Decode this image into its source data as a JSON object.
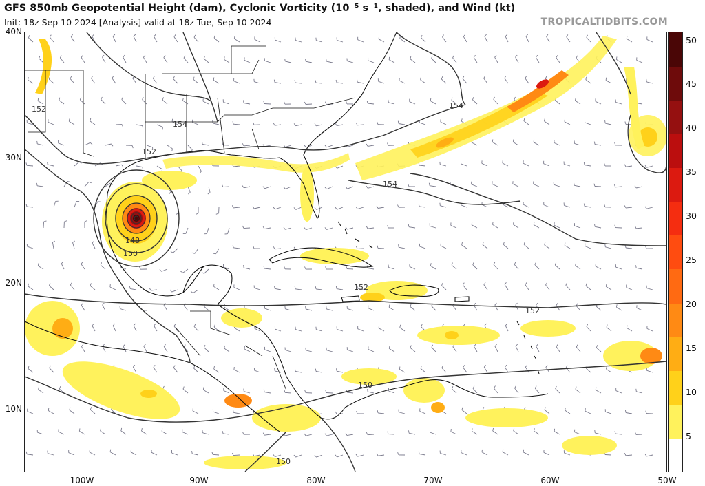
{
  "header": {
    "title": "GFS 850mb Geopotential Height (dam), Cyclonic Vorticity (10⁻⁵ s⁻¹, shaded), and Wind (kt)",
    "subtitle": "Init: 18z Sep 10 2024   [Analysis]   valid at 18z Tue, Sep 10 2024",
    "brand": "TROPICALTIDBITS.COM"
  },
  "map": {
    "region": "Gulf of Mexico, Caribbean and western Atlantic",
    "lon_range": [
      -105,
      -50
    ],
    "lat_range": [
      5,
      40
    ],
    "lat_labels": [
      "40N",
      "30N",
      "20N",
      "10N"
    ],
    "lon_labels": [
      "100W",
      "90W",
      "80W",
      "70W",
      "60W",
      "50W"
    ],
    "features": {
      "cyclone": "intense closed low in the western Gulf of Mexico near 25.5N 95.5W",
      "vorticity_band": "NE-oriented vorticity band from off the SE US coast toward 38N 55W"
    },
    "contour_labels": [
      "152",
      "154",
      "152",
      "148",
      "150",
      "154",
      "154",
      "152",
      "152",
      "150",
      "150"
    ],
    "colors": {
      "contour": "#333333",
      "coast": "#111111",
      "wind_barb": "#7a7a8c"
    }
  },
  "colorbar": {
    "labels": [
      "50",
      "45",
      "40",
      "35",
      "30",
      "25",
      "20",
      "15",
      "10",
      "5"
    ],
    "colors": [
      "#ffffff",
      "#fff25c",
      "#ffd11a",
      "#ffad14",
      "#ff8a14",
      "#ff6a12",
      "#ff4c10",
      "#f52d10",
      "#dc1a10",
      "#bb0e0e",
      "#951010",
      "#6e0b0b",
      "#4a0606"
    ]
  }
}
